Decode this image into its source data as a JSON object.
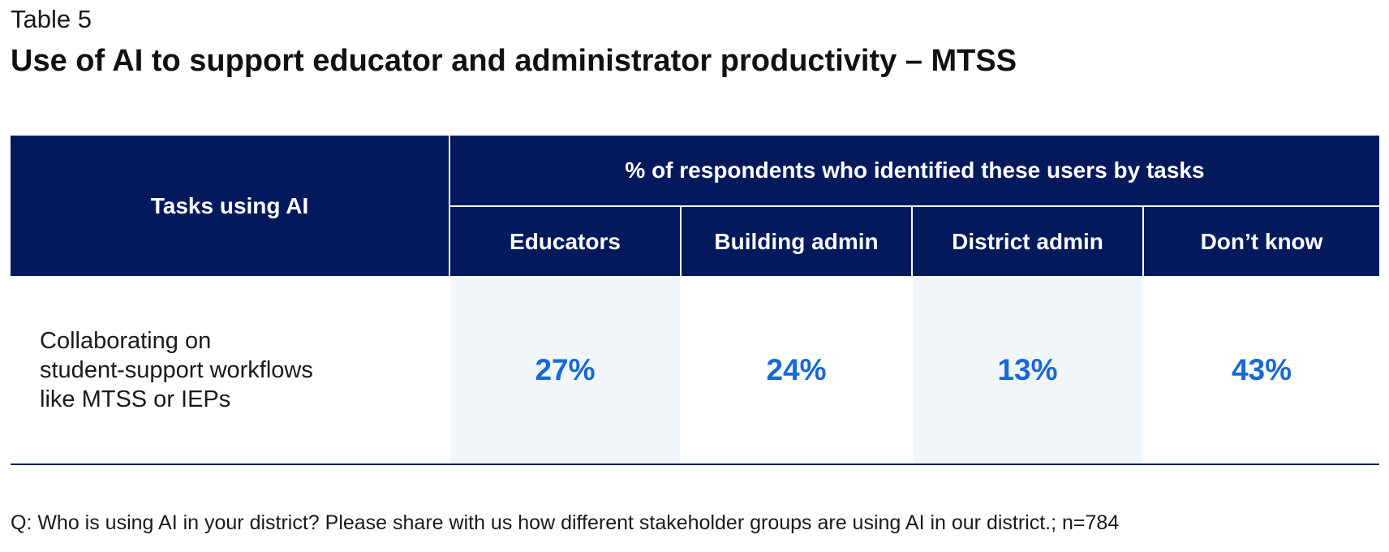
{
  "table_label": "Table 5",
  "title": "Use of AI to support educator and administrator productivity – MTSS",
  "table": {
    "task_header": "Tasks using AI",
    "group_header": "% of respondents who identified these users by tasks",
    "columns": [
      "Educators",
      "Building admin",
      "District admin",
      "Don’t know"
    ],
    "rows": [
      {
        "task": "Collaborating on\nstudent-support workflows\nlike MTSS or IEPs",
        "values": [
          "27%",
          "24%",
          "13%",
          "43%"
        ]
      }
    ]
  },
  "footnote": "Q: Who is using AI in your district? Please share with us how different stakeholder groups are using AI in our district.; n=784",
  "colors": {
    "header_bg": "#021a5c",
    "value_text": "#1769d6",
    "shaded_cell": "#f1f6fa"
  }
}
